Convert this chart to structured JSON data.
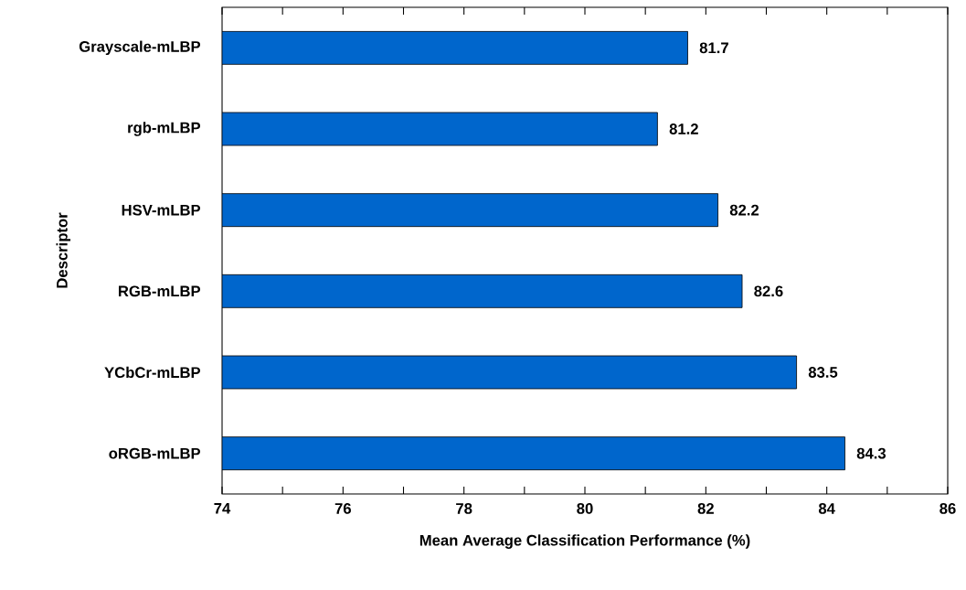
{
  "chart_data": {
    "type": "bar",
    "orientation": "horizontal",
    "xlabel": "Mean Average Classification Performance (%)",
    "ylabel": "Descriptor",
    "categories": [
      "Grayscale-mLBP",
      "rgb-mLBP",
      "HSV-mLBP",
      "RGB-mLBP",
      "YCbCr-mLBP",
      "oRGB-mLBP"
    ],
    "values": [
      81.7,
      81.2,
      82.2,
      82.6,
      83.5,
      84.3
    ],
    "color": "#0066cc",
    "data_labels": true,
    "xlim": [
      74,
      86
    ],
    "xticks": [
      74,
      {
        "value": 75,
        "label": null
      },
      76,
      {
        "value": 77,
        "label": null
      },
      78,
      {
        "value": 79,
        "label": null
      },
      80,
      {
        "value": 81,
        "label": null
      },
      82,
      {
        "value": 83,
        "label": null
      },
      84,
      {
        "value": 85,
        "label": null
      },
      86
    ]
  }
}
